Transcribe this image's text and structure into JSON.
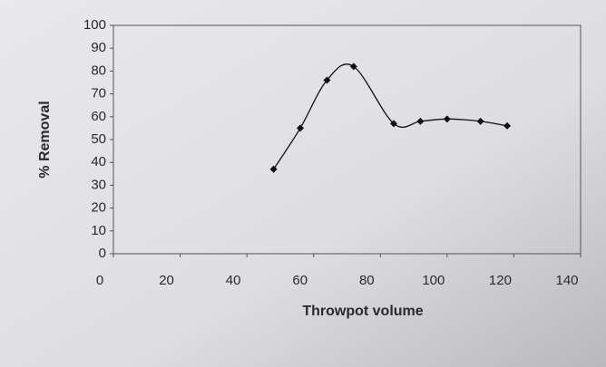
{
  "chart_data": {
    "type": "line",
    "x_label": "Throwpot volume",
    "y_label": "% Removal",
    "x": [
      48,
      56,
      64,
      72,
      84,
      92,
      100,
      110,
      118
    ],
    "series": [
      {
        "color": "#111111",
        "values": [
          37,
          55,
          76,
          82,
          57,
          58,
          59,
          58,
          56
        ]
      }
    ],
    "smooth": true,
    "xlim": [
      0,
      140
    ],
    "xticks": [
      0,
      20,
      40,
      60,
      80,
      100,
      120,
      140
    ],
    "ylim": [
      0,
      100
    ],
    "yticks": [
      0,
      10,
      20,
      30,
      40,
      50,
      60,
      70,
      80,
      90,
      100
    ]
  }
}
